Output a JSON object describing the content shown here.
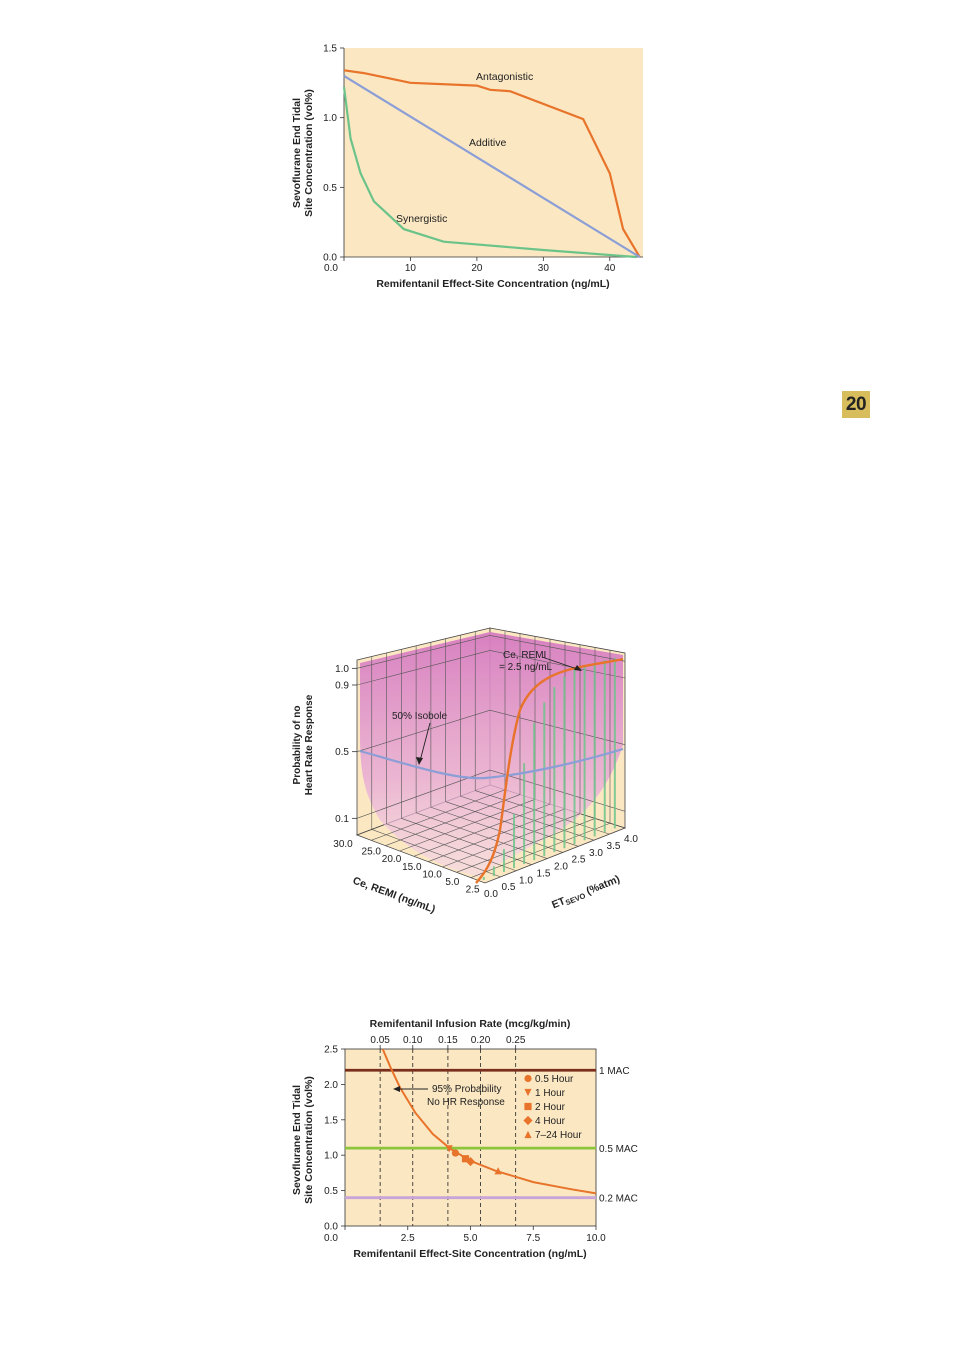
{
  "page": {
    "chapter_number": "20"
  },
  "colors": {
    "panel_bg": "#fbe8c3",
    "orange": "#e8732a",
    "blue": "#8c9ed6",
    "green": "#6cc38a",
    "dark_red": "#7a2e1c",
    "olive_green": "#8cc43c",
    "lavender": "#c9a4d8",
    "magenta_surface": "#d67bc0"
  },
  "chart_data": [
    {
      "type": "line",
      "xlabel": "Remifentanil Effect-Site Concentration (ng/mL)",
      "ylabel_lines": [
        "Sevoflurane End Tidal",
        "Site Concentration (vol%)"
      ],
      "xlim": [
        0,
        45
      ],
      "ylim": [
        0,
        1.5
      ],
      "x_ticks": [
        "0.0",
        "10",
        "20",
        "30",
        "40"
      ],
      "x_tick_values": [
        0,
        10,
        20,
        30,
        40
      ],
      "y_ticks": [
        "0.0",
        "0.5",
        "1.0",
        "1.5"
      ],
      "y_tick_values": [
        0,
        0.5,
        1.0,
        1.5
      ],
      "series": [
        {
          "name": "Antagonistic",
          "color": "#e8732a",
          "points": [
            [
              0,
              1.34
            ],
            [
              3,
              1.32
            ],
            [
              10,
              1.25
            ],
            [
              20,
              1.23
            ],
            [
              22,
              1.2
            ],
            [
              25,
              1.19
            ],
            [
              36,
              0.99
            ],
            [
              40,
              0.6
            ],
            [
              42,
              0.2
            ],
            [
              44.5,
              0
            ]
          ]
        },
        {
          "name": "Additive",
          "color": "#8c9ed6",
          "points": [
            [
              0,
              1.3
            ],
            [
              44.5,
              0
            ]
          ]
        },
        {
          "name": "Synergistic",
          "color": "#6cc38a",
          "points": [
            [
              0,
              1.22
            ],
            [
              1,
              0.85
            ],
            [
              2.5,
              0.6
            ],
            [
              4.5,
              0.4
            ],
            [
              9,
              0.2
            ],
            [
              15,
              0.11
            ],
            [
              30,
              0.05
            ],
            [
              44,
              0
            ]
          ]
        }
      ],
      "annotations": [
        "Antagonistic",
        "Additive",
        "Synergistic"
      ]
    },
    {
      "type": "surface3d",
      "zlabel_lines": [
        "Probability of no",
        "Heart Rate Response"
      ],
      "z_ticks": [
        "0.1",
        "0.5",
        "0.9",
        "1.0"
      ],
      "z_tick_values": [
        0.1,
        0.5,
        0.9,
        1.0
      ],
      "x_axis_label": "Ce, REMI (ng/mL)",
      "x_ticks": [
        "30.0",
        "25.0",
        "20.0",
        "15.0",
        "10.0",
        "5.0",
        "2.5"
      ],
      "y_axis_label_main": "ET",
      "y_axis_label_sub": "SEVO",
      "y_axis_label_unit": " (%atm)",
      "y_ticks": [
        "0.0",
        "0.5",
        "1.0",
        "1.5",
        "2.0",
        "2.5",
        "3.0",
        "3.5",
        "4.0"
      ],
      "annotations": {
        "isobole": "50% Isobole",
        "ce_remi_line1": "Ce, REMI",
        "ce_remi_line2": "= 2.5 ng/mL"
      }
    },
    {
      "type": "line",
      "top_axis_label": "Remifentanil Infusion Rate (mcg/kg/min)",
      "top_ticks": [
        "0.05",
        "0.10",
        "0.15",
        "0.20",
        "0.25"
      ],
      "top_tick_x_values": [
        1.4,
        2.7,
        4.1,
        5.4,
        6.8
      ],
      "xlabel": "Remifentanil Effect-Site Concentration (ng/mL)",
      "ylabel_lines": [
        "Sevoflurane End Tidal",
        "Site Concentration (vol%)"
      ],
      "xlim": [
        0,
        10
      ],
      "ylim": [
        0,
        2.5
      ],
      "x_ticks": [
        "0.0",
        "2.5",
        "5.0",
        "7.5",
        "10.0"
      ],
      "x_tick_values": [
        0,
        2.5,
        5.0,
        7.5,
        10.0
      ],
      "y_ticks": [
        "0.0",
        "0.5",
        "1.0",
        "1.5",
        "2.0",
        "2.5"
      ],
      "y_tick_values": [
        0,
        0.5,
        1.0,
        1.5,
        2.0,
        2.5
      ],
      "mac_lines": [
        {
          "label": "1 MAC",
          "y": 2.2,
          "color": "#7a2e1c"
        },
        {
          "label": "0.5 MAC",
          "y": 1.1,
          "color": "#8cc43c"
        },
        {
          "label": "0.2 MAC",
          "y": 0.4,
          "color": "#c9a4d8"
        }
      ],
      "curve": {
        "name": "95% Probability No HR Response",
        "label_line1": "95% Probability",
        "label_line2": "No HR Response",
        "color": "#e8732a",
        "points": [
          [
            1.5,
            2.5
          ],
          [
            1.8,
            2.25
          ],
          [
            2.2,
            1.95
          ],
          [
            2.8,
            1.6
          ],
          [
            3.5,
            1.3
          ],
          [
            4.2,
            1.09
          ],
          [
            5.0,
            0.92
          ],
          [
            6.0,
            0.78
          ],
          [
            7.5,
            0.62
          ],
          [
            9.0,
            0.52
          ],
          [
            10.0,
            0.46
          ]
        ]
      },
      "legend": [
        {
          "label": "0.5 Hour",
          "marker": "circle"
        },
        {
          "label": "1 Hour",
          "marker": "triangle-down"
        },
        {
          "label": "2 Hour",
          "marker": "square"
        },
        {
          "label": "4 Hour",
          "marker": "diamond"
        },
        {
          "label": "7–24 Hour",
          "marker": "triangle-up"
        }
      ],
      "markers": [
        {
          "marker": "triangle-down",
          "x": 4.15,
          "y": 1.09
        },
        {
          "marker": "circle",
          "x": 4.4,
          "y": 1.03
        },
        {
          "marker": "square",
          "x": 4.8,
          "y": 0.95
        },
        {
          "marker": "diamond",
          "x": 5.0,
          "y": 0.91
        },
        {
          "marker": "triangle-up",
          "x": 6.1,
          "y": 0.78
        }
      ]
    }
  ]
}
